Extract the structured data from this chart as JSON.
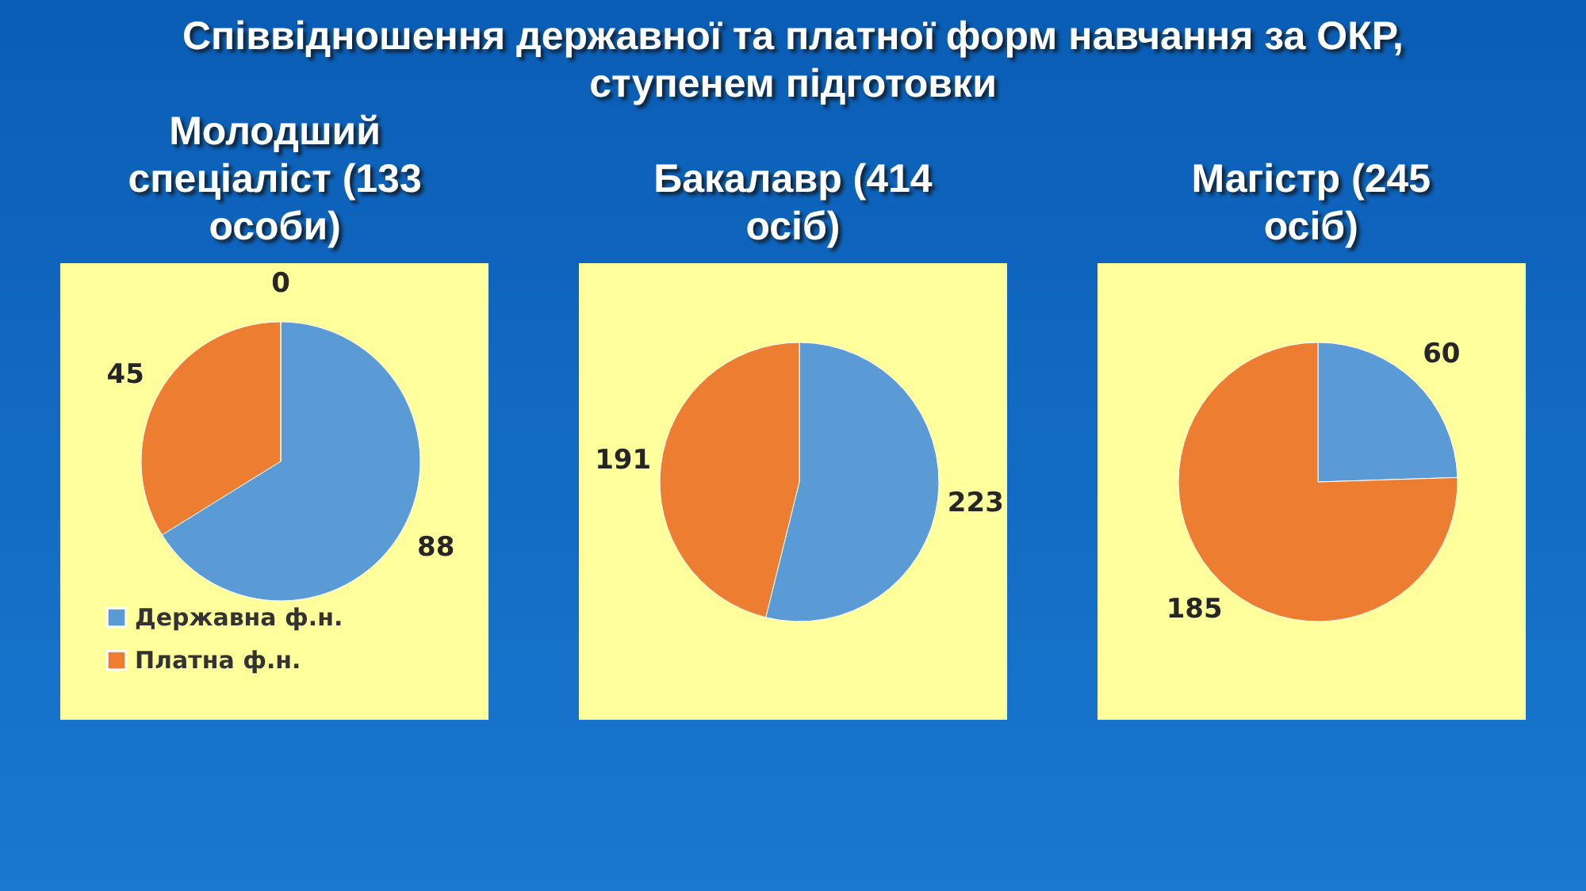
{
  "chart_data": [
    {
      "type": "pie",
      "title": "Молодший спеціаліст (133 особи)",
      "annotations": [
        "Співвідношення державної та платної форм навчання за ОКР, ступенем підготовки"
      ],
      "categories": [
        "Державна ф.н.",
        "Платна ф.н.",
        null
      ],
      "values": [
        88,
        45,
        0
      ],
      "colors": [
        "#5b9bd5",
        "#ed7d31",
        "#a5a5a5"
      ],
      "value_labels": [
        "88",
        "45",
        "0"
      ],
      "legend": "bottom left"
    },
    {
      "type": "pie",
      "title": "Бакалавр (414 осіб)",
      "categories": [
        null,
        null
      ],
      "values": [
        223,
        191
      ],
      "colors": [
        "#5b9bd5",
        "#ed7d31"
      ],
      "data_labels": true
    },
    {
      "type": "pie",
      "title": "Магістр (245 осіб)",
      "categories": [
        null,
        null
      ],
      "values": [
        60,
        185
      ],
      "colors": [
        "#5b9bd5",
        "#ed7d31"
      ],
      "data_labels": true
    }
  ]
}
